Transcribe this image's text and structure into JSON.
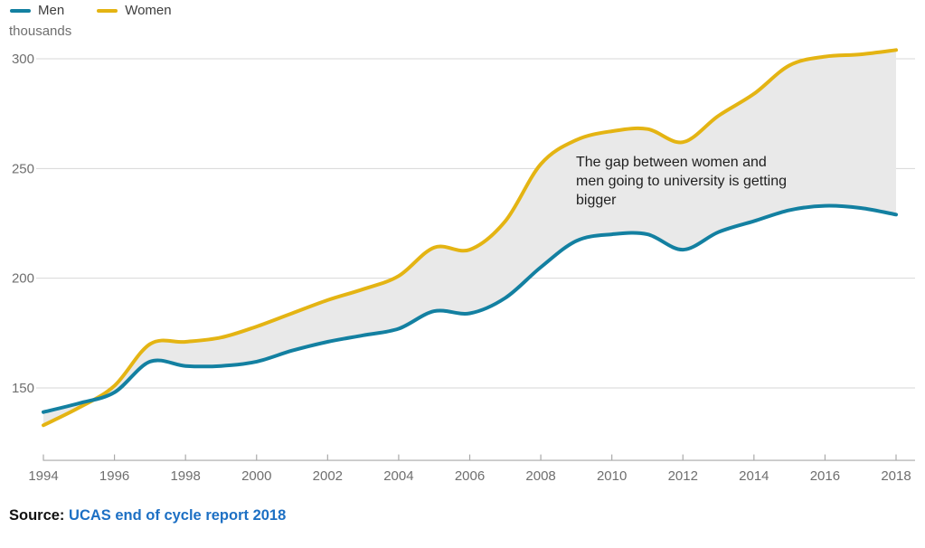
{
  "legend": {
    "items": [
      {
        "label": "Men",
        "color": "#1380A1"
      },
      {
        "label": "Women",
        "color": "#E4B413"
      }
    ]
  },
  "y_axis_unit": "thousands",
  "annotation": {
    "lines": [
      "The gap between women and",
      "men going to university is getting",
      "bigger"
    ]
  },
  "source": {
    "prefix": "Source:",
    "link_text": "UCAS end of cycle report 2018"
  },
  "chart_data": {
    "type": "line",
    "title": "",
    "xlabel": "",
    "ylabel": "thousands",
    "x": [
      1994,
      1995,
      1996,
      1997,
      1998,
      1999,
      2000,
      2001,
      2002,
      2003,
      2004,
      2005,
      2006,
      2007,
      2008,
      2009,
      2010,
      2011,
      2012,
      2013,
      2014,
      2015,
      2016,
      2017,
      2018
    ],
    "series": [
      {
        "name": "Men",
        "color": "#1380A1",
        "values": [
          139,
          143,
          148,
          162,
          160,
          160,
          162,
          167,
          171,
          174,
          177,
          185,
          184,
          191,
          205,
          217,
          220,
          220,
          213,
          221,
          226,
          231,
          233,
          232,
          229
        ]
      },
      {
        "name": "Women",
        "color": "#E4B413",
        "values": [
          133,
          141,
          151,
          170,
          171,
          173,
          178,
          184,
          190,
          195,
          201,
          214,
          213,
          226,
          252,
          263,
          267,
          268,
          262,
          274,
          284,
          297,
          301,
          302,
          304
        ]
      }
    ],
    "x_ticks": [
      1994,
      1996,
      1998,
      2000,
      2002,
      2004,
      2006,
      2008,
      2010,
      2012,
      2014,
      2016,
      2018
    ],
    "y_ticks": [
      150,
      200,
      250,
      300
    ],
    "xlim": [
      1994,
      2018
    ],
    "ylim": [
      117,
      306
    ],
    "grid": "horizontal-only",
    "legend_position": "top-left",
    "area_between_series_color": "#e9e9e9",
    "annotation": "The gap between women and men going to university is getting bigger"
  },
  "colors": {
    "gridline": "#d7d7d7",
    "axis": "#a9a9a9",
    "tick_label": "#6f6f6f",
    "annotation_text": "#1f1f1f",
    "source_link": "#1d70c4",
    "background": "#ffffff"
  }
}
